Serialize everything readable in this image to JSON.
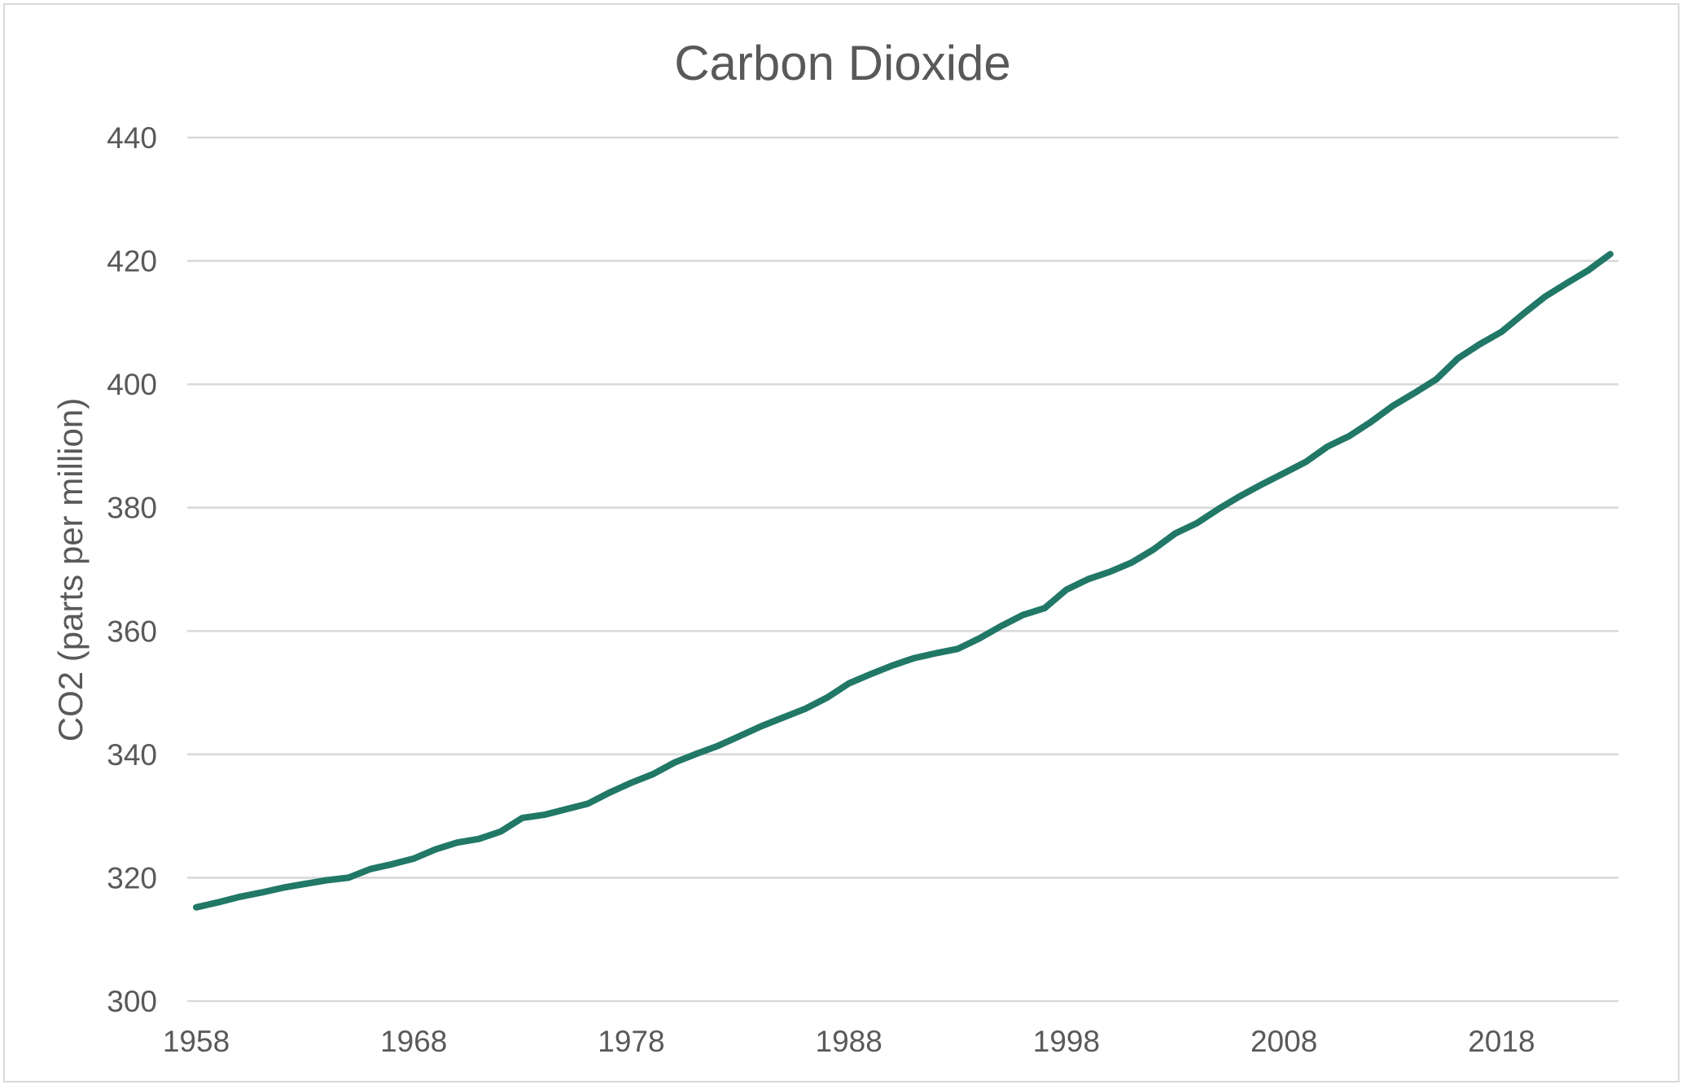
{
  "chart_data": {
    "type": "line",
    "title": "Carbon Dioxide",
    "xlabel": "",
    "ylabel": "CO2 (parts per million)",
    "xlim": [
      1958,
      2023
    ],
    "ylim": [
      300,
      440
    ],
    "yticks": [
      300,
      320,
      340,
      360,
      380,
      400,
      420,
      440
    ],
    "xticks": [
      1958,
      1968,
      1978,
      1988,
      1998,
      2008,
      2018
    ],
    "grid": "horizontal",
    "legend": "none",
    "colors": {
      "series": "#217867",
      "grid": "#d9d9d9",
      "text": "#595959",
      "border": "#d9d9d9"
    },
    "series": [
      {
        "x": [
          1958,
          1959,
          1960,
          1961,
          1962,
          1963,
          1964,
          1965,
          1966,
          1967,
          1968,
          1969,
          1970,
          1971,
          1972,
          1973,
          1974,
          1975,
          1976,
          1977,
          1978,
          1979,
          1980,
          1981,
          1982,
          1983,
          1984,
          1985,
          1986,
          1987,
          1988,
          1989,
          1990,
          1991,
          1992,
          1993,
          1994,
          1995,
          1996,
          1997,
          1998,
          1999,
          2000,
          2001,
          2002,
          2003,
          2004,
          2005,
          2006,
          2007,
          2008,
          2009,
          2010,
          2011,
          2012,
          2013,
          2014,
          2015,
          2016,
          2017,
          2018,
          2019,
          2020,
          2021,
          2022,
          2023
        ],
        "values": [
          315.2,
          316.0,
          316.9,
          317.6,
          318.4,
          319.0,
          319.6,
          320.0,
          321.4,
          322.2,
          323.1,
          324.6,
          325.7,
          326.3,
          327.5,
          329.7,
          330.2,
          331.1,
          332.0,
          333.8,
          335.4,
          336.8,
          338.7,
          340.1,
          341.4,
          343.0,
          344.6,
          346.0,
          347.4,
          349.2,
          351.5,
          353.0,
          354.4,
          355.6,
          356.4,
          357.1,
          358.8,
          360.8,
          362.6,
          363.7,
          366.7,
          368.4,
          369.6,
          371.1,
          373.2,
          375.8,
          377.5,
          379.8,
          381.9,
          383.8,
          385.6,
          387.4,
          389.9,
          391.6,
          393.9,
          396.5,
          398.6,
          400.8,
          404.2,
          406.5,
          408.5,
          411.4,
          414.2,
          416.4,
          418.5,
          421.1
        ]
      }
    ]
  }
}
